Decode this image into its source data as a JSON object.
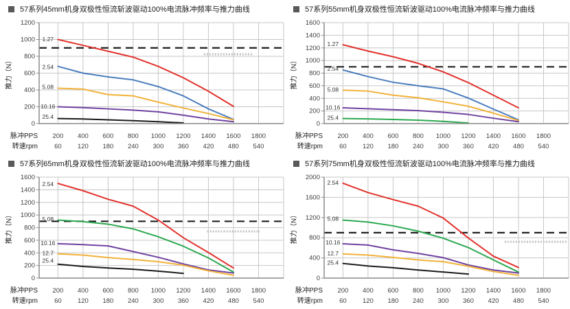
{
  "page": {
    "background": "#ffffff",
    "title_bullet_color": "#595959",
    "grid_color": "#c6c6c6",
    "axis_color": "#8a8a8a",
    "tick_text_color": "#3d3d3d",
    "rated_line_color": "#1f1f1f",
    "watermark_color": "#c2c2c2"
  },
  "chart_data": [
    {
      "type": "line",
      "title": "57系列45mm机身双极性恒流斩波驱动100%电流脉冲频率与推力曲线",
      "ylabel": "推力（N）",
      "x_row1_label": "脉冲PPS",
      "x_row2_label": "转速rpm",
      "x_ticks_pps": [
        200,
        400,
        600,
        800,
        1000,
        1200,
        1400,
        1600,
        1800
      ],
      "x_ticks_rpm": [
        60,
        120,
        180,
        240,
        300,
        360,
        420,
        480,
        540
      ],
      "xlim": [
        50,
        2000
      ],
      "ylim": [
        0,
        1200
      ],
      "ytick_step": 200,
      "grid": true,
      "rated_dashed_line_y": 900,
      "watermark": {
        "x1": 1364,
        "x2": 1748,
        "y": 825
      },
      "series": [
        {
          "name": "1.27",
          "color": "#e2312b",
          "label_y": 1005,
          "x": [
            200,
            400,
            600,
            800,
            1000,
            1200,
            1400,
            1600
          ],
          "y": [
            1000,
            930,
            860,
            790,
            680,
            545,
            385,
            205
          ]
        },
        {
          "name": "2.54",
          "color": "#4a7dbe",
          "label_y": 672,
          "x": [
            200,
            400,
            600,
            800,
            1000,
            1200,
            1400,
            1600
          ],
          "y": [
            680,
            600,
            555,
            520,
            440,
            330,
            175,
            50
          ]
        },
        {
          "name": "5.08",
          "color": "#f2b138",
          "label_y": 435,
          "x": [
            200,
            400,
            600,
            800,
            1000,
            1200,
            1400,
            1600
          ],
          "y": [
            420,
            410,
            345,
            330,
            255,
            185,
            120,
            45
          ]
        },
        {
          "name": "10.16",
          "color": "#6f42a0",
          "label_y": 205,
          "x": [
            200,
            400,
            600,
            800,
            1000,
            1200,
            1400,
            1600
          ],
          "y": [
            200,
            190,
            175,
            160,
            140,
            100,
            55,
            22
          ]
        },
        {
          "name": "25.4",
          "color": "#1a1a1a",
          "label_y": 80,
          "x": [
            200,
            400,
            600,
            800,
            1000,
            1200
          ],
          "y": [
            60,
            55,
            45,
            35,
            22,
            8
          ]
        }
      ]
    },
    {
      "type": "line",
      "title": "57系列55mm机身双极性恒流斩波驱动100%电流脉冲频率与推力曲线",
      "ylabel": "推力（N）",
      "x_row1_label": "脉冲PPS",
      "x_row2_label": "转速rpm",
      "x_ticks_pps": [
        200,
        400,
        600,
        800,
        1000,
        1200,
        1400,
        1600,
        1800
      ],
      "x_ticks_rpm": [
        60,
        120,
        180,
        240,
        300,
        360,
        420,
        480,
        540
      ],
      "xlim": [
        50,
        2000
      ],
      "ylim": [
        0,
        1600
      ],
      "ytick_step": 200,
      "grid": true,
      "rated_dashed_line_y": 900,
      "watermark": null,
      "series": [
        {
          "name": "1.27",
          "color": "#e2312b",
          "label_y": 1260,
          "x": [
            200,
            400,
            600,
            800,
            1000,
            1200,
            1400,
            1600
          ],
          "y": [
            1250,
            1150,
            1060,
            955,
            820,
            650,
            450,
            250
          ]
        },
        {
          "name": "2.54",
          "color": "#4a7dbe",
          "label_y": 870,
          "x": [
            200,
            400,
            600,
            800,
            1000,
            1200,
            1400,
            1600
          ],
          "y": [
            850,
            745,
            655,
            600,
            550,
            405,
            230,
            60
          ]
        },
        {
          "name": "5.08",
          "color": "#f2b138",
          "label_y": 540,
          "x": [
            200,
            400,
            600,
            800,
            1000,
            1200,
            1400,
            1600
          ],
          "y": [
            530,
            515,
            450,
            410,
            345,
            275,
            165,
            50
          ]
        },
        {
          "name": "10.16",
          "color": "#6f42a0",
          "label_y": 255,
          "x": [
            200,
            400,
            600,
            800,
            1000,
            1200,
            1400,
            1600
          ],
          "y": [
            250,
            235,
            220,
            205,
            180,
            145,
            85,
            30
          ]
        },
        {
          "name": "25.4",
          "color": "#2ba84f",
          "label_y": 95,
          "x": [
            200,
            400,
            600,
            800,
            1000,
            1200
          ],
          "y": [
            80,
            75,
            65,
            55,
            35,
            10
          ]
        }
      ]
    },
    {
      "type": "line",
      "title": "57系列65mm机身双极性恒流斩波驱动100%电流脉冲频率与推力曲线",
      "ylabel": "推力（N）",
      "x_row1_label": "脉冲PPS",
      "x_row2_label": "转速rpm",
      "x_ticks_pps": [
        200,
        400,
        600,
        800,
        1000,
        1200,
        1400,
        1600,
        1800
      ],
      "x_ticks_rpm": [
        60,
        120,
        180,
        240,
        300,
        360,
        420,
        480,
        540
      ],
      "xlim": [
        50,
        2000
      ],
      "ylim": [
        0,
        1600
      ],
      "ytick_step": 200,
      "grid": true,
      "rated_dashed_line_y": 900,
      "watermark": {
        "x1": 1390,
        "x2": 1810,
        "y": 740
      },
      "series": [
        {
          "name": "2.54",
          "color": "#e2312b",
          "label_y": 1490,
          "x": [
            200,
            400,
            600,
            800,
            1000,
            1200,
            1400,
            1600
          ],
          "y": [
            1500,
            1385,
            1250,
            1140,
            920,
            640,
            405,
            160
          ]
        },
        {
          "name": "5.08",
          "color": "#2ba84f",
          "label_y": 935,
          "x": [
            200,
            400,
            600,
            800,
            1000,
            1200,
            1400,
            1600
          ],
          "y": [
            920,
            895,
            855,
            780,
            655,
            505,
            320,
            95
          ]
        },
        {
          "name": "10.16",
          "color": "#6f42a0",
          "label_y": 555,
          "x": [
            200,
            400,
            600,
            800,
            1000,
            1200,
            1400,
            1600
          ],
          "y": [
            545,
            530,
            510,
            420,
            330,
            225,
            130,
            80
          ]
        },
        {
          "name": "12.7",
          "color": "#f2b138",
          "label_y": 395,
          "x": [
            200,
            400,
            600,
            800,
            1000,
            1200,
            1400,
            1600
          ],
          "y": [
            385,
            365,
            325,
            295,
            260,
            205,
            115,
            45
          ]
        },
        {
          "name": "25.4",
          "color": "#1a1a1a",
          "label_y": 280,
          "x": [
            200,
            400,
            600,
            800,
            1000,
            1200
          ],
          "y": [
            220,
            185,
            160,
            140,
            110,
            75
          ]
        }
      ]
    },
    {
      "type": "line",
      "title": "57系列75mm机身双极性恒流斩波驱动100%电流脉冲频率与推力曲线",
      "ylabel": "推力（N）",
      "x_row1_label": "脉冲PPS",
      "x_row2_label": "转速rpm",
      "x_ticks_pps": [
        200,
        400,
        600,
        800,
        1000,
        1200,
        1400,
        1600,
        1800
      ],
      "x_ticks_rpm": [
        60,
        120,
        180,
        240,
        300,
        360,
        420,
        480,
        540
      ],
      "xlim": [
        50,
        2000
      ],
      "ylim": [
        0,
        2000
      ],
      "ytick_step": 400,
      "grid": true,
      "rated_dashed_line_y": 900,
      "watermark": {
        "x1": 1490,
        "x2": 1985,
        "y": 720
      },
      "series": [
        {
          "name": "2.54",
          "color": "#e2312b",
          "label_y": 1890,
          "x": [
            200,
            400,
            600,
            800,
            1000,
            1200,
            1400,
            1600
          ],
          "y": [
            1880,
            1695,
            1555,
            1425,
            1190,
            795,
            435,
            210
          ]
        },
        {
          "name": "5.08",
          "color": "#2ba84f",
          "label_y": 1175,
          "x": [
            200,
            400,
            600,
            800,
            1000,
            1200,
            1400,
            1600
          ],
          "y": [
            1150,
            1110,
            1035,
            930,
            790,
            605,
            360,
            120
          ]
        },
        {
          "name": "10.16",
          "color": "#6f42a0",
          "label_y": 705,
          "x": [
            200,
            400,
            600,
            800,
            1000,
            1200,
            1400,
            1600
          ],
          "y": [
            680,
            655,
            560,
            490,
            405,
            260,
            160,
            100
          ]
        },
        {
          "name": "12.7",
          "color": "#f2b138",
          "label_y": 490,
          "x": [
            200,
            400,
            600,
            800,
            1000,
            1200,
            1400,
            1600
          ],
          "y": [
            480,
            455,
            410,
            360,
            325,
            235,
            130,
            55
          ]
        },
        {
          "name": "25.4",
          "color": "#1a1a1a",
          "label_y": 305,
          "x": [
            200,
            400,
            600,
            800,
            1000,
            1200
          ],
          "y": [
            290,
            240,
            205,
            160,
            120,
            80
          ]
        }
      ]
    }
  ]
}
